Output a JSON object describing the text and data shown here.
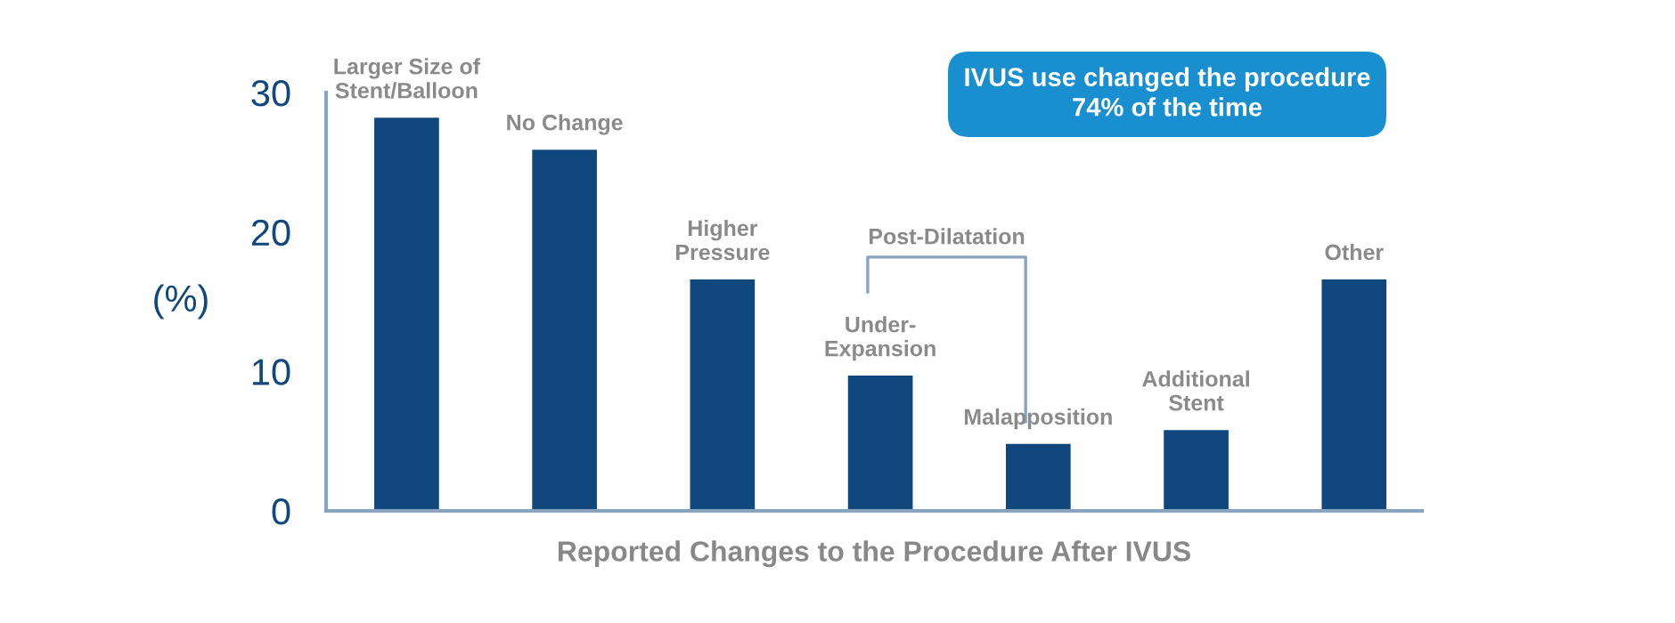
{
  "chart_data": {
    "type": "bar",
    "categories": [
      "Larger Size of\nStent/Balloon",
      "No Change",
      "Higher\nPressure",
      "Under-\nExpansion",
      "Malapposition",
      "Additional\nStent",
      "Other"
    ],
    "values": [
      28.2,
      25.9,
      16.6,
      9.7,
      4.8,
      5.8,
      16.6
    ],
    "color": "#10477d",
    "xlabel": "Reported Changes to the Procedure After IVUS",
    "ylabel": "(%)",
    "ylim": [
      0,
      30
    ],
    "yticks": [
      0,
      10,
      20,
      30
    ],
    "tick_labels": "y",
    "grid": false,
    "annotations": [
      "IVUS use changed the procedure\n74% of the time",
      "Post-Dilatation"
    ]
  }
}
